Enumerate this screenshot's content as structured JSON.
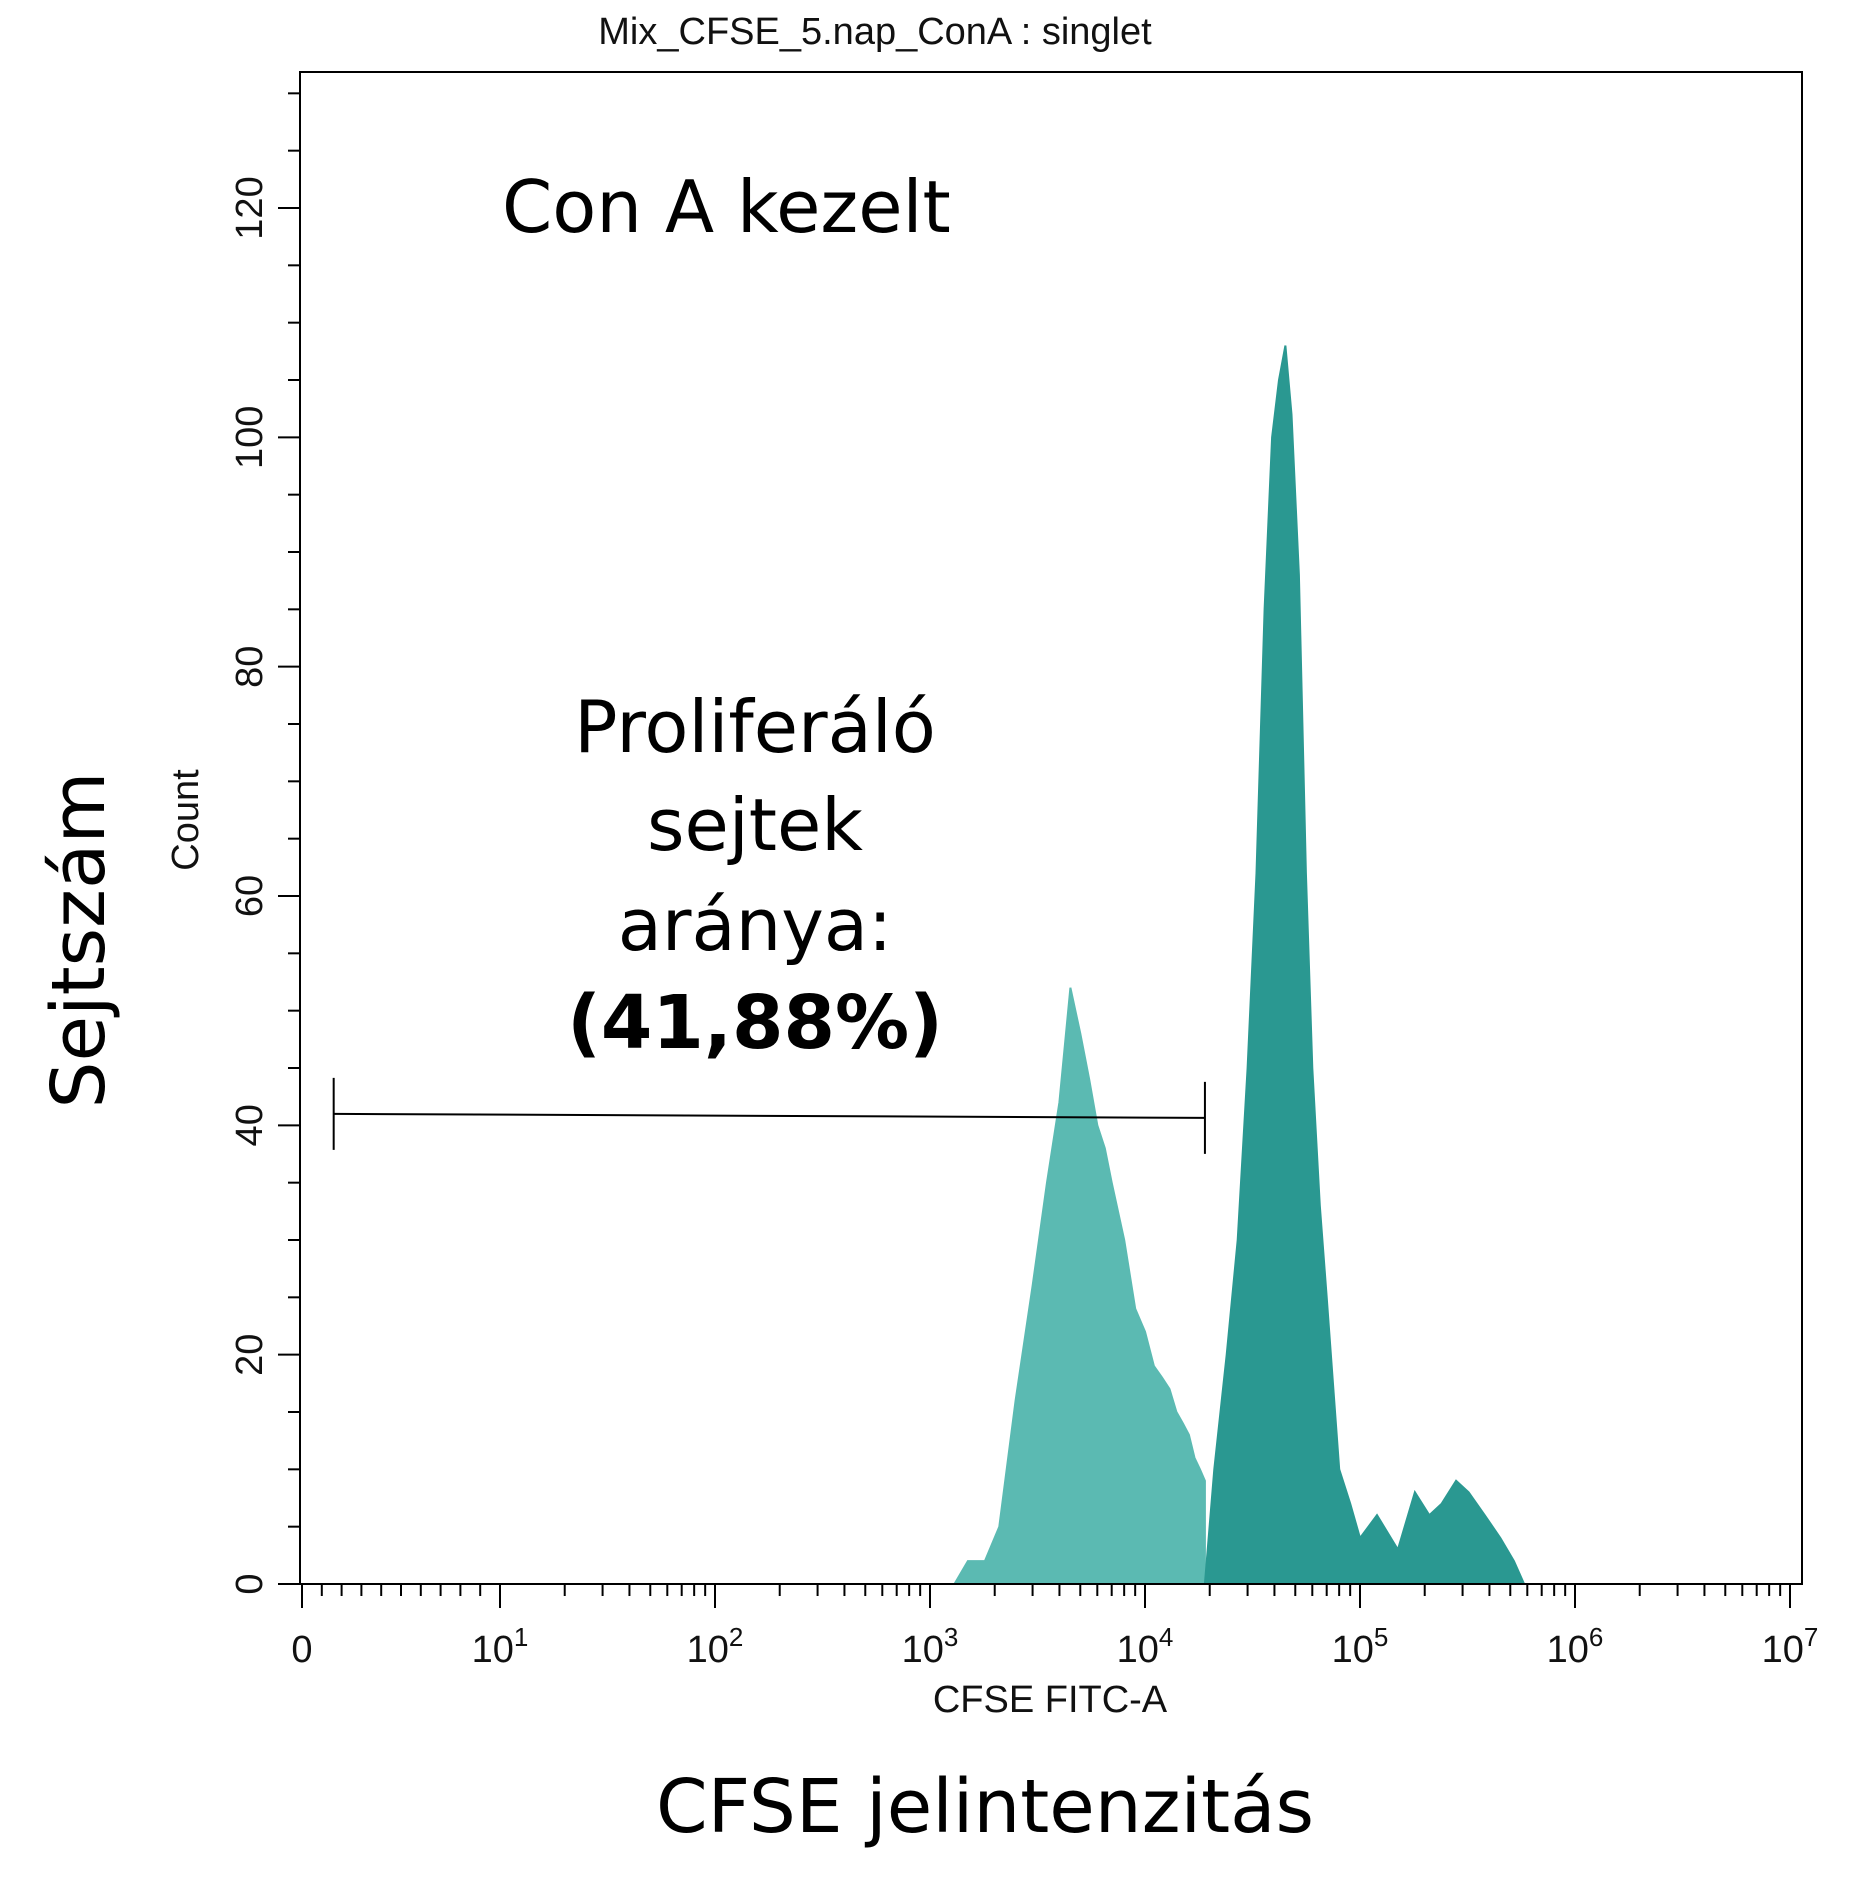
{
  "chart_data": {
    "type": "area",
    "title": "Mix_CFSE_5.nap_ConA : singlet",
    "xlabel": "CFSE FITC-A",
    "ylabel": "Count",
    "outer_xlabel": "CFSE jelintenzitás",
    "outer_ylabel": "Sejtszám",
    "x_scale": "biexponential",
    "xlim": [
      0,
      10000000
    ],
    "ylim": [
      0,
      132
    ],
    "x_ticks": [
      {
        "value": 0,
        "base": "0",
        "exp": ""
      },
      {
        "value": 10,
        "base": "10",
        "exp": "1"
      },
      {
        "value": 100,
        "base": "10",
        "exp": "2"
      },
      {
        "value": 1000,
        "base": "10",
        "exp": "3"
      },
      {
        "value": 10000,
        "base": "10",
        "exp": "4"
      },
      {
        "value": 100000,
        "base": "10",
        "exp": "5"
      },
      {
        "value": 1000000,
        "base": "10",
        "exp": "6"
      },
      {
        "value": 10000000,
        "base": "10",
        "exp": "7"
      }
    ],
    "y_ticks": [
      0,
      20,
      40,
      60,
      80,
      100,
      120
    ],
    "sample_label": "Con A kezelt",
    "gate": {
      "x_start": 1.6,
      "x_end": 19000,
      "y": 41,
      "label_lines": [
        "Proliferáló",
        "sejtek",
        "aránya:"
      ],
      "value": "(41,88%)"
    },
    "series": [
      {
        "color": "#5bbab2",
        "x": [
          1300,
          1500,
          1800,
          2100,
          2500,
          3000,
          3500,
          4000,
          4500,
          5000,
          5500,
          6000,
          6500,
          7000,
          8000,
          9000,
          10000,
          11000,
          12000,
          13000,
          14000,
          15000,
          16000,
          17000,
          18000,
          19000
        ],
        "values": [
          0,
          2,
          2,
          5,
          16,
          26,
          35,
          42,
          52,
          48,
          44,
          40,
          38,
          35,
          30,
          24,
          22,
          19,
          18,
          17,
          15,
          14,
          13,
          11,
          10,
          9
        ]
      },
      {
        "color": "#2a9891",
        "x": [
          19000,
          21000,
          24000,
          27000,
          30000,
          33000,
          36000,
          39000,
          42000,
          45000,
          48000,
          52000,
          56000,
          60000,
          65000,
          70000,
          80000,
          90000,
          100000,
          120000,
          150000,
          180000,
          210000,
          240000,
          280000,
          320000,
          380000,
          450000,
          520000,
          580000
        ],
        "values": [
          0,
          10,
          20,
          30,
          45,
          62,
          85,
          100,
          105,
          108,
          102,
          88,
          62,
          45,
          33,
          25,
          10,
          7,
          4,
          6,
          3,
          8,
          6,
          7,
          9,
          8,
          6,
          4,
          2,
          0
        ]
      }
    ]
  }
}
